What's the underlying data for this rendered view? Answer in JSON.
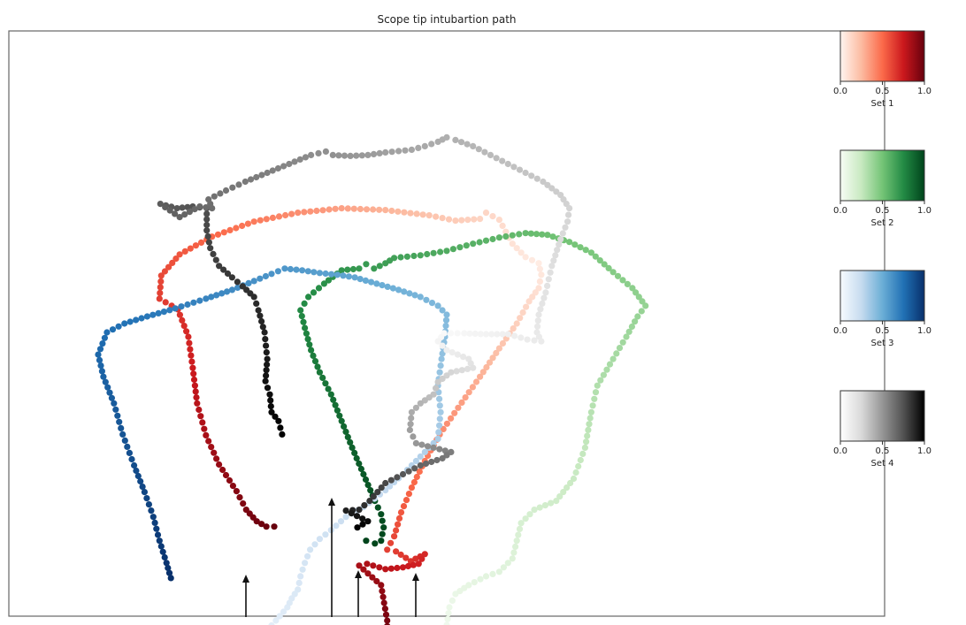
{
  "chart_data": {
    "type": "scatter",
    "title": "Scope tip intubartion path",
    "xlabel": "",
    "ylabel": "",
    "grid": false,
    "legend": "colorbars-right",
    "xlim": [
      0,
      1000
    ],
    "ylim": [
      0,
      660
    ],
    "series": [
      {
        "name": "Set 1",
        "colormap": "Reds",
        "colors": [
          "#fff5f0",
          "#fcbba1",
          "#fb6a4a",
          "#cb181d",
          "#67000d"
        ],
        "paths": [
          {
            "dir": "reverse",
            "points": [
              [
                303,
                559
              ],
              [
                294,
                559
              ],
              [
                283,
                553
              ],
              [
                271,
                540
              ],
              [
                260,
                519
              ],
              [
                240,
                489
              ],
              [
                225,
                456
              ],
              [
                215,
                420
              ],
              [
                210,
                380
              ],
              [
                205,
                345
              ],
              [
                193,
                314
              ],
              [
                172,
                302
              ],
              [
                174,
                276
              ],
              [
                195,
                252
              ],
              [
                232,
                232
              ],
              [
                280,
                215
              ],
              [
                330,
                205
              ],
              [
                380,
                200
              ],
              [
                430,
                202
              ],
              [
                480,
                208
              ],
              [
                510,
                214
              ],
              [
                538,
                212
              ],
              [
                545,
                205
              ],
              [
                560,
                213
              ],
              [
                575,
                240
              ],
              [
                590,
                255
              ],
              [
                605,
                262
              ]
            ]
          },
          {
            "dir": "forward",
            "points": [
              [
                605,
                262
              ],
              [
                608,
                275
              ],
              [
                605,
                290
              ],
              [
                594,
                305
              ],
              [
                580,
                330
              ],
              [
                560,
                358
              ],
              [
                538,
                390
              ],
              [
                513,
                425
              ],
              [
                492,
                455
              ],
              [
                475,
                485
              ],
              [
                460,
                515
              ],
              [
                448,
                543
              ],
              [
                440,
                570
              ],
              [
                432,
                585
              ],
              [
                442,
                587
              ],
              [
                459,
                598
              ],
              [
                475,
                590
              ],
              [
                468,
                601
              ],
              [
                450,
                605
              ],
              [
                430,
                607
              ],
              [
                409,
                601
              ],
              [
                400,
                603
              ],
              [
                425,
                625
              ],
              [
                432,
                665
              ],
              [
                432,
                690
              ]
            ]
          }
        ]
      },
      {
        "name": "Set 2",
        "colormap": "Greens",
        "colors": [
          "#f7fcf5",
          "#c7e9c0",
          "#74c476",
          "#238b45",
          "#00441b"
        ],
        "paths": [
          {
            "dir": "forward",
            "points": [
              [
                500,
                670
              ],
              [
                503,
                650
              ],
              [
                510,
                635
              ],
              [
                525,
                625
              ],
              [
                545,
                615
              ],
              [
                560,
                610
              ],
              [
                575,
                595
              ],
              [
                580,
                575
              ],
              [
                585,
                555
              ],
              [
                600,
                540
              ],
              [
                625,
                530
              ],
              [
                645,
                505
              ],
              [
                658,
                470
              ],
              [
                665,
                430
              ],
              [
                672,
                400
              ],
              [
                690,
                370
              ],
              [
                705,
                345
              ],
              [
                718,
                322
              ],
              [
                727,
                310
              ],
              [
                712,
                290
              ],
              [
                690,
                272
              ],
              [
                665,
                250
              ],
              [
                640,
                238
              ],
              [
                615,
                230
              ],
              [
                590,
                228
              ],
              [
                560,
                233
              ],
              [
                530,
                240
              ],
              [
                500,
                248
              ],
              [
                470,
                253
              ],
              [
                440,
                256
              ],
              [
                430,
                262
              ],
              [
                417,
                268
              ],
              [
                408,
                263
              ],
              [
                400,
                268
              ],
              [
                380,
                270
              ],
              [
                360,
                285
              ],
              [
                342,
                300
              ],
              [
                333,
                315
              ],
              [
                338,
                335
              ],
              [
                345,
                360
              ],
              [
                355,
                385
              ],
              [
                368,
                410
              ],
              [
                380,
                440
              ],
              [
                392,
                470
              ],
              [
                405,
                500
              ],
              [
                418,
                530
              ],
              [
                425,
                545
              ],
              [
                428,
                560
              ],
              [
                425,
                575
              ],
              [
                418,
                578
              ],
              [
                408,
                575
              ]
            ]
          }
        ]
      },
      {
        "name": "Set 3",
        "colormap": "Blues",
        "colors": [
          "#f7fbff",
          "#c6dbef",
          "#6baed6",
          "#2171b5",
          "#08306b"
        ],
        "paths": [
          {
            "dir": "reverse",
            "points": [
              [
                185,
                617
              ],
              [
                180,
                600
              ],
              [
                172,
                575
              ],
              [
                165,
                548
              ],
              [
                155,
                520
              ],
              [
                143,
                490
              ],
              [
                130,
                455
              ],
              [
                120,
                420
              ],
              [
                108,
                390
              ],
              [
                102,
                365
              ],
              [
                112,
                340
              ],
              [
                132,
                330
              ],
              [
                158,
                322
              ],
              [
                190,
                313
              ],
              [
                225,
                302
              ],
              [
                255,
                292
              ],
              [
                280,
                282
              ],
              [
                300,
                274
              ],
              [
                315,
                268
              ],
              [
                335,
                270
              ],
              [
                355,
                273
              ],
              [
                375,
                275
              ],
              [
                395,
                278
              ],
              [
                420,
                285
              ],
              [
                445,
                292
              ],
              [
                470,
                300
              ],
              [
                490,
                310
              ],
              [
                500,
                320
              ],
              [
                498,
                345
              ],
              [
                494,
                370
              ],
              [
                490,
                400
              ],
              [
                493,
                430
              ],
              [
                490,
                460
              ],
              [
                470,
                480
              ],
              [
                450,
                500
              ],
              [
                430,
                518
              ],
              [
                405,
                537
              ],
              [
                385,
                548
              ],
              [
                368,
                563
              ],
              [
                355,
                573
              ],
              [
                344,
                585
              ],
              [
                338,
                600
              ],
              [
                333,
                615
              ],
              [
                330,
                630
              ],
              [
                323,
                640
              ],
              [
                318,
                650
              ],
              [
                305,
                665
              ],
              [
                295,
                676
              ],
              [
                287,
                689
              ],
              [
                325,
                675
              ],
              [
                345,
                680
              ]
            ]
          }
        ]
      },
      {
        "name": "Set 4",
        "colormap": "Greys",
        "colors": [
          "#ffffff",
          "#d9d9d9",
          "#969696",
          "#525252",
          "#000000"
        ],
        "paths": [
          {
            "dir": "reverse",
            "points": [
              [
                312,
                455
              ],
              [
                308,
                440
              ],
              [
                300,
                430
              ],
              [
                298,
                410
              ],
              [
                293,
                395
              ],
              [
                295,
                370
              ],
              [
                292,
                340
              ],
              [
                285,
                315
              ],
              [
                280,
                300
              ],
              [
                267,
                288
              ],
              [
                255,
                278
              ],
              [
                240,
                265
              ],
              [
                230,
                245
              ],
              [
                226,
                225
              ],
              [
                226,
                200
              ],
              [
                210,
                198
              ],
              [
                192,
                200
              ],
              [
                173,
                195
              ],
              [
                195,
                210
              ],
              [
                218,
                198
              ],
              [
                232,
                200
              ],
              [
                228,
                190
              ],
              [
                248,
                180
              ],
              [
                270,
                170
              ],
              [
                295,
                160
              ],
              [
                320,
                150
              ],
              [
                345,
                140
              ],
              [
                362,
                136
              ],
              [
                370,
                140
              ],
              [
                390,
                141
              ],
              [
                410,
                140
              ],
              [
                430,
                137
              ],
              [
                460,
                134
              ],
              [
                475,
                130
              ],
              [
                490,
                125
              ],
              [
                500,
                120
              ],
              [
                510,
                123
              ],
              [
                530,
                130
              ],
              [
                550,
                140
              ],
              [
                570,
                150
              ],
              [
                590,
                160
              ],
              [
                610,
                170
              ],
              [
                630,
                185
              ],
              [
                640,
                200
              ],
              [
                638,
                215
              ],
              [
                630,
                235
              ],
              [
                620,
                265
              ],
              [
                613,
                295
              ],
              [
                605,
                320
              ],
              [
                603,
                340
              ],
              [
                608,
                350
              ],
              [
                592,
                348
              ],
              [
                570,
                342
              ],
              [
                545,
                342
              ],
              [
                520,
                341
              ],
              [
                497,
                341
              ]
            ]
          },
          {
            "dir": "forward",
            "points": [
              [
                497,
                341
              ],
              [
                490,
                350
              ],
              [
                500,
                360
              ],
              [
                525,
                370
              ],
              [
                530,
                380
              ],
              [
                505,
                385
              ],
              [
                490,
                396
              ],
              [
                485,
                410
              ],
              [
                470,
                420
              ],
              [
                460,
                430
              ],
              [
                458,
                450
              ],
              [
                465,
                465
              ],
              [
                485,
                470
              ],
              [
                505,
                475
              ],
              [
                495,
                482
              ],
              [
                470,
                490
              ],
              [
                450,
                500
              ],
              [
                430,
                510
              ],
              [
                412,
                530
              ],
              [
                400,
                540
              ],
              [
                385,
                541
              ],
              [
                410,
                553
              ],
              [
                398,
                560
              ]
            ]
          }
        ]
      }
    ],
    "colorbars": [
      {
        "label": "Set 1",
        "ticks": [
          "0.0",
          "0.5",
          "1.0"
        ]
      },
      {
        "label": "Set 2",
        "ticks": [
          "0.0",
          "0.5",
          "1.0"
        ]
      },
      {
        "label": "Set 3",
        "ticks": [
          "0.0",
          "0.5",
          "1.0"
        ]
      },
      {
        "label": "Set 4",
        "ticks": [
          "0.0",
          "0.5",
          "1.0"
        ]
      }
    ]
  }
}
